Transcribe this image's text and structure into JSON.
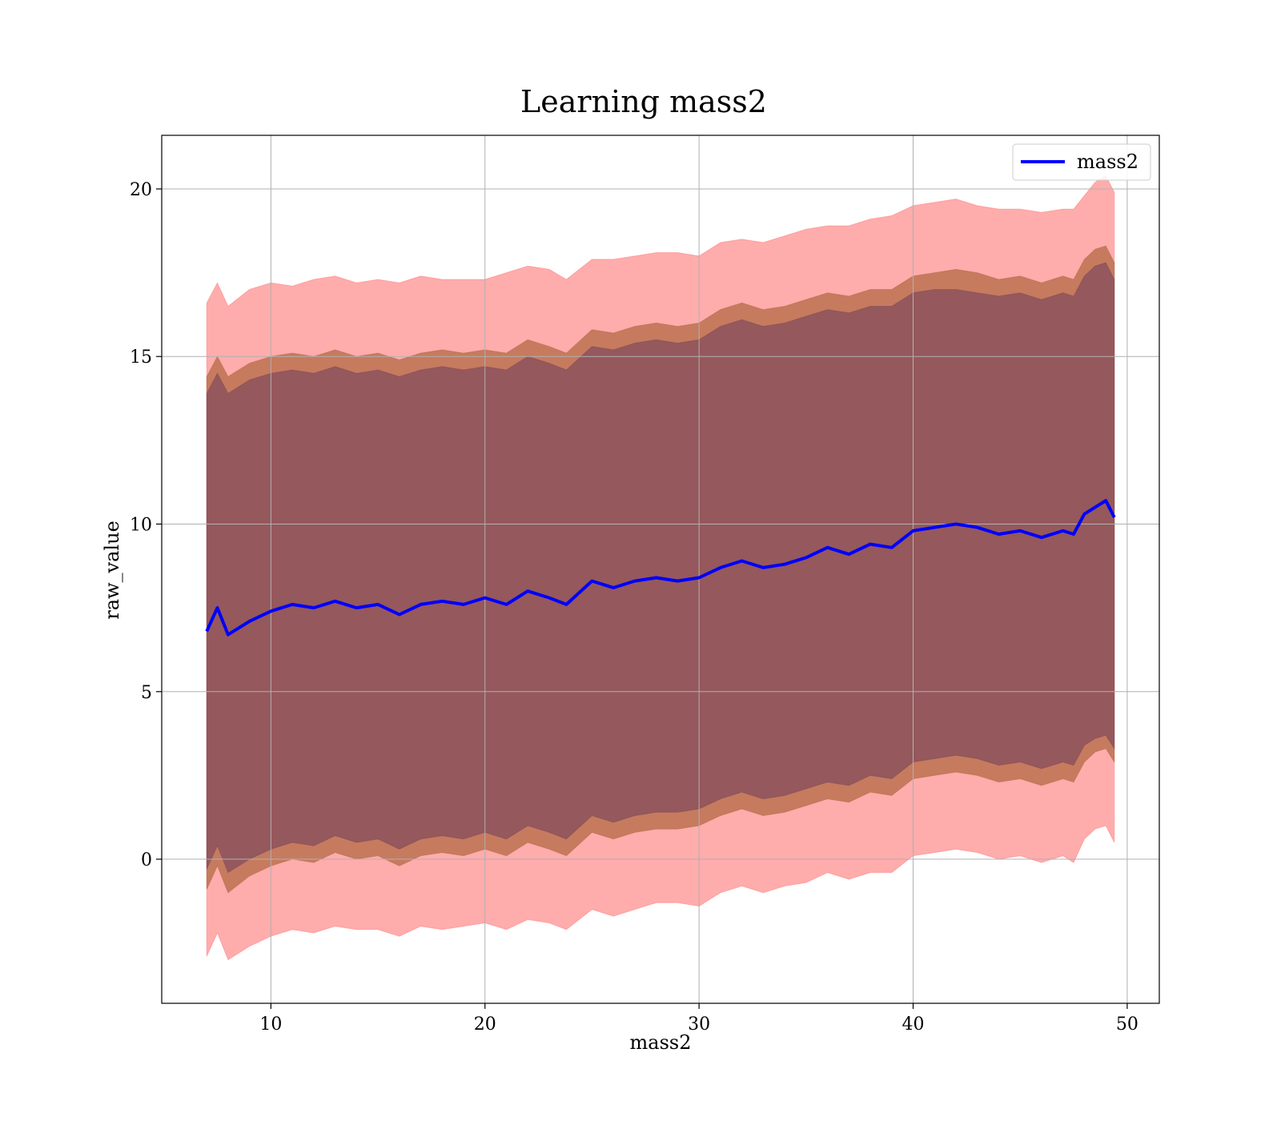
{
  "chart_data": {
    "type": "area",
    "title": "Learning mass2",
    "xlabel": "mass2",
    "ylabel": "raw_value",
    "xlim": [
      4.9,
      51.5
    ],
    "ylim": [
      -4.3,
      21.6
    ],
    "xticks": [
      10,
      20,
      30,
      40,
      50
    ],
    "yticks": [
      0,
      5,
      10,
      15,
      20
    ],
    "grid": true,
    "legend": {
      "position": "top-right",
      "entries": [
        "mass2"
      ]
    },
    "colors": {
      "mean_line": "#0000ff",
      "band_outer": "#ff5a5a",
      "band_middle": "#a05a2c",
      "band_inner": "#6e3c5a",
      "grid": "#b0b0b0"
    },
    "x": [
      7.0,
      7.5,
      8.0,
      9.0,
      10.0,
      11.0,
      12.0,
      13.0,
      14.0,
      15.0,
      16.0,
      17.0,
      18.0,
      19.0,
      20.0,
      21.0,
      22.0,
      23.0,
      23.8,
      25.0,
      26.0,
      27.0,
      28.0,
      29.0,
      30.0,
      31.0,
      32.0,
      33.0,
      34.0,
      35.0,
      36.0,
      37.0,
      38.0,
      39.0,
      40.0,
      41.0,
      42.0,
      43.0,
      44.0,
      45.0,
      46.0,
      47.0,
      47.5,
      48.0,
      48.5,
      49.0,
      49.4
    ],
    "series": [
      {
        "name": "mass2",
        "role": "mean",
        "values": [
          6.8,
          7.5,
          6.7,
          7.1,
          7.4,
          7.6,
          7.5,
          7.7,
          7.5,
          7.6,
          7.3,
          7.6,
          7.7,
          7.6,
          7.8,
          7.6,
          8.0,
          7.8,
          7.6,
          8.3,
          8.1,
          8.3,
          8.4,
          8.3,
          8.4,
          8.7,
          8.9,
          8.7,
          8.8,
          9.0,
          9.3,
          9.1,
          9.4,
          9.3,
          9.8,
          9.9,
          10.0,
          9.9,
          9.7,
          9.8,
          9.6,
          9.8,
          9.7,
          10.3,
          10.5,
          10.7,
          10.2
        ]
      },
      {
        "role": "outer_band",
        "upper": [
          16.6,
          17.2,
          16.5,
          17.0,
          17.2,
          17.1,
          17.3,
          17.4,
          17.2,
          17.3,
          17.2,
          17.4,
          17.3,
          17.3,
          17.3,
          17.5,
          17.7,
          17.6,
          17.3,
          17.9,
          17.9,
          18.0,
          18.1,
          18.1,
          18.0,
          18.4,
          18.5,
          18.4,
          18.6,
          18.8,
          18.9,
          18.9,
          19.1,
          19.2,
          19.5,
          19.6,
          19.7,
          19.5,
          19.4,
          19.4,
          19.3,
          19.4,
          19.4,
          19.8,
          20.2,
          20.4,
          19.9
        ],
        "lower": [
          -2.9,
          -2.2,
          -3.0,
          -2.6,
          -2.3,
          -2.1,
          -2.2,
          -2.0,
          -2.1,
          -2.1,
          -2.3,
          -2.0,
          -2.1,
          -2.0,
          -1.9,
          -2.1,
          -1.8,
          -1.9,
          -2.1,
          -1.5,
          -1.7,
          -1.5,
          -1.3,
          -1.3,
          -1.4,
          -1.0,
          -0.8,
          -1.0,
          -0.8,
          -0.7,
          -0.4,
          -0.6,
          -0.4,
          -0.4,
          0.1,
          0.2,
          0.3,
          0.2,
          0.0,
          0.1,
          -0.1,
          0.1,
          -0.1,
          0.6,
          0.9,
          1.0,
          0.5
        ]
      },
      {
        "role": "middle_band",
        "upper": [
          14.4,
          15.0,
          14.4,
          14.8,
          15.0,
          15.1,
          15.0,
          15.2,
          15.0,
          15.1,
          14.9,
          15.1,
          15.2,
          15.1,
          15.2,
          15.1,
          15.5,
          15.3,
          15.1,
          15.8,
          15.7,
          15.9,
          16.0,
          15.9,
          16.0,
          16.4,
          16.6,
          16.4,
          16.5,
          16.7,
          16.9,
          16.8,
          17.0,
          17.0,
          17.4,
          17.5,
          17.6,
          17.5,
          17.3,
          17.4,
          17.2,
          17.4,
          17.3,
          17.9,
          18.2,
          18.3,
          17.8
        ],
        "lower": [
          -0.9,
          -0.2,
          -1.0,
          -0.5,
          -0.2,
          0.0,
          -0.1,
          0.2,
          0.0,
          0.1,
          -0.2,
          0.1,
          0.2,
          0.1,
          0.3,
          0.1,
          0.5,
          0.3,
          0.1,
          0.8,
          0.6,
          0.8,
          0.9,
          0.9,
          1.0,
          1.3,
          1.5,
          1.3,
          1.4,
          1.6,
          1.8,
          1.7,
          2.0,
          1.9,
          2.4,
          2.5,
          2.6,
          2.5,
          2.3,
          2.4,
          2.2,
          2.4,
          2.3,
          2.9,
          3.2,
          3.3,
          2.9
        ]
      },
      {
        "role": "inner_band",
        "upper": [
          13.9,
          14.5,
          13.9,
          14.3,
          14.5,
          14.6,
          14.5,
          14.7,
          14.5,
          14.6,
          14.4,
          14.6,
          14.7,
          14.6,
          14.7,
          14.6,
          15.0,
          14.8,
          14.6,
          15.3,
          15.2,
          15.4,
          15.5,
          15.4,
          15.5,
          15.9,
          16.1,
          15.9,
          16.0,
          16.2,
          16.4,
          16.3,
          16.5,
          16.5,
          16.9,
          17.0,
          17.0,
          16.9,
          16.8,
          16.9,
          16.7,
          16.9,
          16.8,
          17.4,
          17.7,
          17.8,
          17.3
        ],
        "lower": [
          -0.3,
          0.4,
          -0.4,
          0.0,
          0.3,
          0.5,
          0.4,
          0.7,
          0.5,
          0.6,
          0.3,
          0.6,
          0.7,
          0.6,
          0.8,
          0.6,
          1.0,
          0.8,
          0.6,
          1.3,
          1.1,
          1.3,
          1.4,
          1.4,
          1.5,
          1.8,
          2.0,
          1.8,
          1.9,
          2.1,
          2.3,
          2.2,
          2.5,
          2.4,
          2.9,
          3.0,
          3.1,
          3.0,
          2.8,
          2.9,
          2.7,
          2.9,
          2.8,
          3.4,
          3.6,
          3.7,
          3.3
        ]
      }
    ]
  }
}
